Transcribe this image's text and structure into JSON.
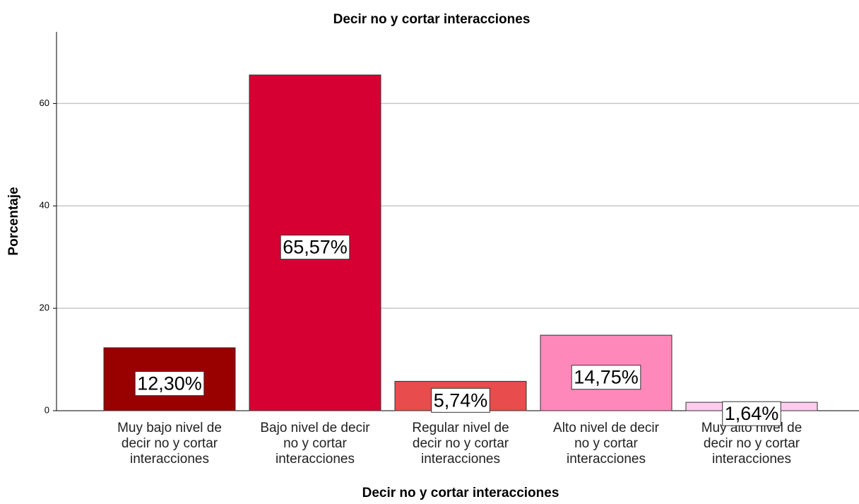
{
  "chart_data": {
    "type": "bar",
    "title": "Decir no y cortar interacciones",
    "x_label": "Decir no y cortar interacciones",
    "y_label": "Porcentaje",
    "categories": [
      "Muy bajo nivel de decir no y cortar interacciones",
      "Bajo nivel de decir no y cortar interacciones",
      "Regular nivel de decir no y cortar interacciones",
      "Alto nivel de decir no y cortar interacciones",
      "Muy alto nivel de decir no y cortar interacciones"
    ],
    "values": [
      12.3,
      65.57,
      5.74,
      14.75,
      1.64
    ],
    "value_labels": [
      "12,30%",
      "65,57%",
      "5,74%",
      "14,75%",
      "1,64%"
    ],
    "colors": [
      "#990000",
      "#d60032",
      "#e84c4c",
      "#ff88bb",
      "#ffccee"
    ],
    "ylim": [
      0,
      74
    ],
    "yticks": [
      0,
      20,
      40,
      60
    ],
    "grid": true
  }
}
